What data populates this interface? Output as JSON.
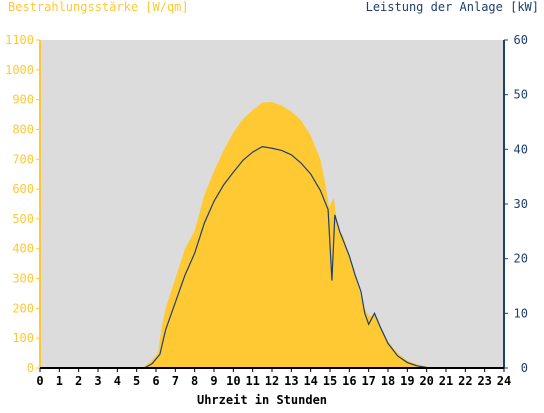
{
  "chart_data": {
    "type": "area",
    "title_left": "Bestrahlungsstärke [W/qm]",
    "title_right": "Leistung der Anlage [kW]",
    "xlabel": "Uhrzeit in Stunden",
    "xlim": [
      0,
      24
    ],
    "ylim_left": [
      0,
      1100
    ],
    "ylim_right": [
      0,
      60
    ],
    "x_ticks": [
      "0",
      "1",
      "2",
      "3",
      "4",
      "5",
      "6",
      "7",
      "8",
      "9",
      "10",
      "11",
      "12",
      "13",
      "14",
      "15",
      "16",
      "17",
      "18",
      "19",
      "20",
      "21",
      "22",
      "23",
      "24"
    ],
    "y_left_ticks": [
      "0",
      "100",
      "200",
      "300",
      "400",
      "500",
      "600",
      "700",
      "800",
      "900",
      "1000",
      "1100"
    ],
    "y_right_ticks": [
      "0",
      "10",
      "20",
      "30",
      "40",
      "50",
      "60"
    ],
    "grid": false,
    "colors": {
      "plot_background": "#dcdcdc",
      "irradiance_fill": "#ffc933",
      "power_line": "#1f3f6e",
      "left_axis": "#ffc933",
      "right_axis": "#1f3f6e"
    },
    "series": [
      {
        "name": "Bestrahlungsstärke [W/qm]",
        "axis": "left",
        "type": "area",
        "points": [
          [
            0,
            0
          ],
          [
            5.3,
            0
          ],
          [
            5.7,
            20
          ],
          [
            6.1,
            50
          ],
          [
            6.3,
            140
          ],
          [
            6.5,
            200
          ],
          [
            7,
            300
          ],
          [
            7.5,
            400
          ],
          [
            8,
            460
          ],
          [
            8.5,
            580
          ],
          [
            9,
            660
          ],
          [
            9.5,
            730
          ],
          [
            10,
            790
          ],
          [
            10.5,
            835
          ],
          [
            11,
            865
          ],
          [
            11.5,
            890
          ],
          [
            12,
            892
          ],
          [
            12.5,
            880
          ],
          [
            13,
            860
          ],
          [
            13.5,
            830
          ],
          [
            14,
            780
          ],
          [
            14.5,
            700
          ],
          [
            14.75,
            620
          ],
          [
            14.95,
            540
          ],
          [
            15.2,
            570
          ],
          [
            15.4,
            470
          ],
          [
            15.7,
            440
          ],
          [
            16.1,
            350
          ],
          [
            16.3,
            320
          ],
          [
            16.6,
            240
          ],
          [
            16.8,
            200
          ],
          [
            17,
            175
          ],
          [
            17.4,
            175
          ],
          [
            17.6,
            140
          ],
          [
            18,
            90
          ],
          [
            18.5,
            50
          ],
          [
            19,
            25
          ],
          [
            19.5,
            12
          ],
          [
            20,
            5
          ],
          [
            20.2,
            0
          ],
          [
            24,
            0
          ]
        ]
      },
      {
        "name": "Leistung der Anlage [kW]",
        "axis": "right",
        "type": "line",
        "points": [
          [
            0,
            0
          ],
          [
            5.4,
            0
          ],
          [
            5.8,
            0.8
          ],
          [
            6.2,
            2.5
          ],
          [
            6.5,
            7
          ],
          [
            7,
            12
          ],
          [
            7.5,
            17
          ],
          [
            8,
            21
          ],
          [
            8.5,
            26.5
          ],
          [
            9,
            30.5
          ],
          [
            9.5,
            33.5
          ],
          [
            10,
            35.8
          ],
          [
            10.5,
            38
          ],
          [
            11,
            39.5
          ],
          [
            11.5,
            40.5
          ],
          [
            12,
            40.2
          ],
          [
            12.5,
            39.8
          ],
          [
            13,
            39
          ],
          [
            13.5,
            37.5
          ],
          [
            14,
            35.5
          ],
          [
            14.5,
            32.5
          ],
          [
            14.9,
            29
          ],
          [
            15.1,
            16
          ],
          [
            15.25,
            28
          ],
          [
            15.5,
            25
          ],
          [
            16,
            20.5
          ],
          [
            16.3,
            17
          ],
          [
            16.6,
            14
          ],
          [
            16.8,
            10
          ],
          [
            17,
            8
          ],
          [
            17.3,
            10
          ],
          [
            17.6,
            7.5
          ],
          [
            18,
            4.5
          ],
          [
            18.5,
            2.2
          ],
          [
            19,
            1
          ],
          [
            19.5,
            0.4
          ],
          [
            20,
            0.1
          ],
          [
            20.2,
            0
          ],
          [
            24,
            0
          ]
        ]
      }
    ]
  }
}
